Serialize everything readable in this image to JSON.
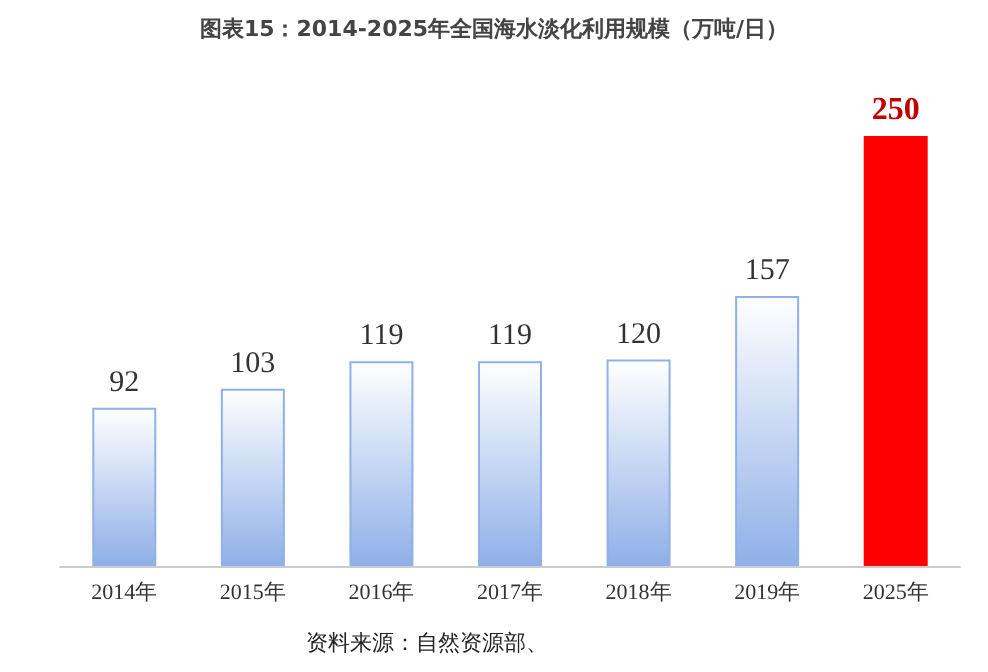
{
  "chart_data": {
    "type": "bar",
    "title": "图表15：2014-2025年全国海水淡化利用规模（万吨/日）",
    "categories": [
      "2014年",
      "2015年",
      "2016年",
      "2017年",
      "2018年",
      "2019年",
      "2025年"
    ],
    "values": [
      92,
      103,
      119,
      119,
      120,
      157,
      250
    ],
    "colors": [
      "#8fb0e8",
      "#8fb0e8",
      "#8fb0e8",
      "#8fb0e8",
      "#8fb0e8",
      "#8fb0e8",
      "#ff0000"
    ],
    "data_labels": true,
    "annotations": [
      "资料来源：自然资源部、"
    ]
  }
}
